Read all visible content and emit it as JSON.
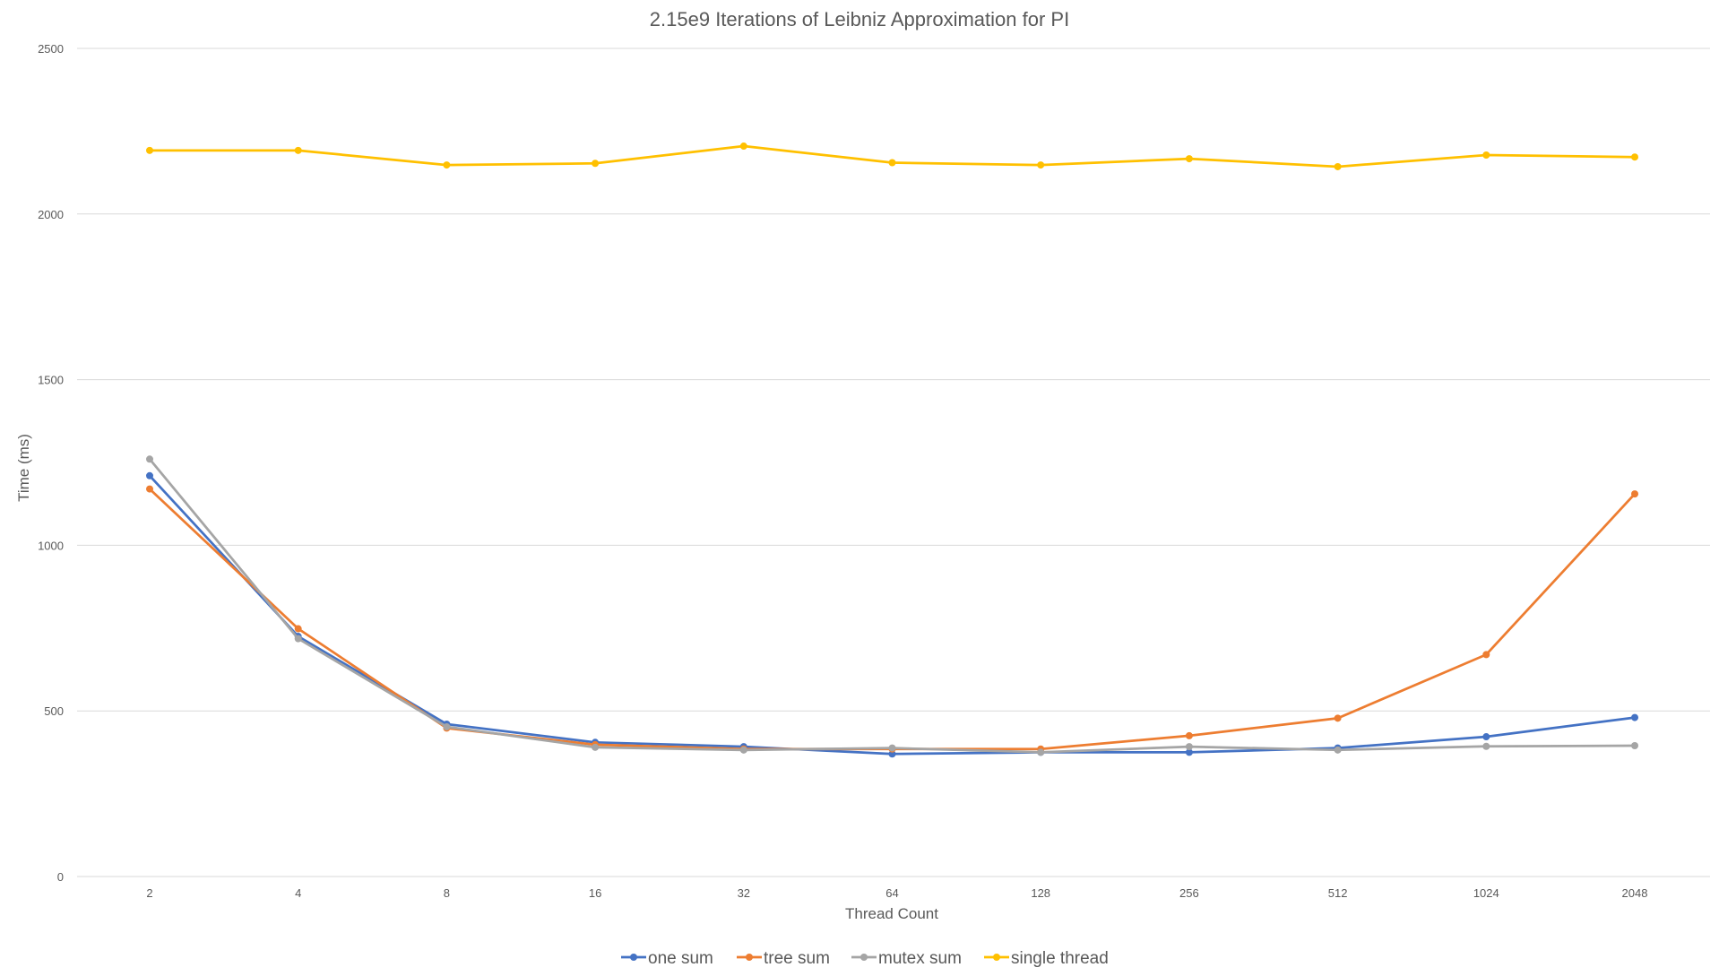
{
  "chart_data": {
    "type": "line",
    "title": "2.15e9 Iterations of Leibniz Approximation for PI",
    "xlabel": "Thread Count",
    "ylabel": "Time (ms)",
    "categories": [
      "2",
      "4",
      "8",
      "16",
      "32",
      "64",
      "128",
      "256",
      "512",
      "1024",
      "2048"
    ],
    "ylim": [
      0,
      2500
    ],
    "yticks": [
      0,
      500,
      1000,
      1500,
      2000,
      2500
    ],
    "grid": true,
    "legend_position": "bottom",
    "series": [
      {
        "name": "one sum",
        "color": "#4472c4",
        "values": [
          1210,
          725,
          460,
          405,
          392,
          370,
          375,
          375,
          388,
          422,
          480
        ]
      },
      {
        "name": "tree sum",
        "color": "#ed7d31",
        "values": [
          1170,
          748,
          448,
          398,
          385,
          385,
          385,
          425,
          478,
          670,
          1155
        ]
      },
      {
        "name": "mutex sum",
        "color": "#a5a5a5",
        "values": [
          1260,
          718,
          452,
          390,
          382,
          388,
          375,
          392,
          382,
          393,
          395
        ]
      },
      {
        "name": "single thread",
        "color": "#ffc000",
        "values": [
          2192,
          2192,
          2148,
          2153,
          2205,
          2155,
          2148,
          2167,
          2143,
          2178,
          2172
        ]
      }
    ]
  }
}
